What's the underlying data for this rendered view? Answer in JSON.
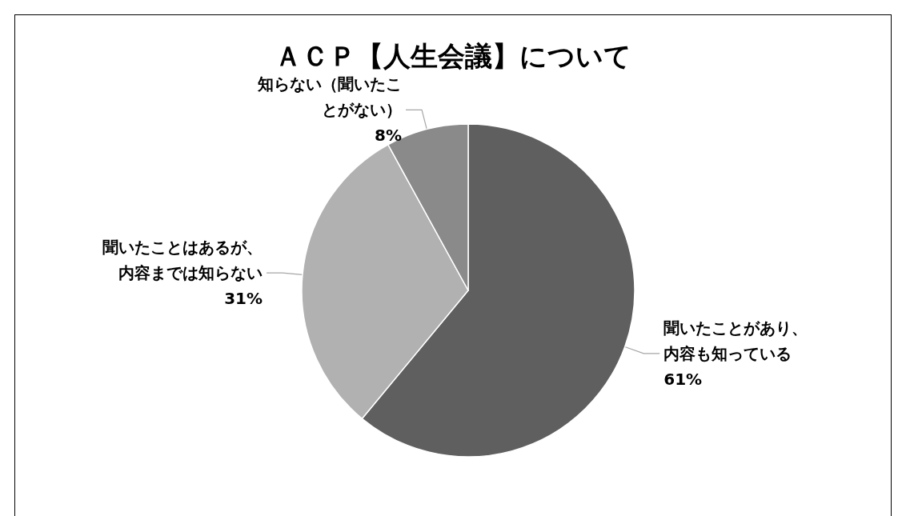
{
  "chart_data": {
    "type": "pie",
    "title": "ＡＣＰ【人生会議】について",
    "categories": [
      "聞いたことがあり、内容も知っている",
      "聞いたことはあるが、内容までは知らない",
      "知らない（聞いたことがない）"
    ],
    "values": [
      61,
      31,
      8
    ],
    "colors": [
      "#5f5f5f",
      "#b1b1b1",
      "#8a8a8a"
    ],
    "value_labels": [
      "61%",
      "31%",
      "8%"
    ],
    "legend": false
  }
}
